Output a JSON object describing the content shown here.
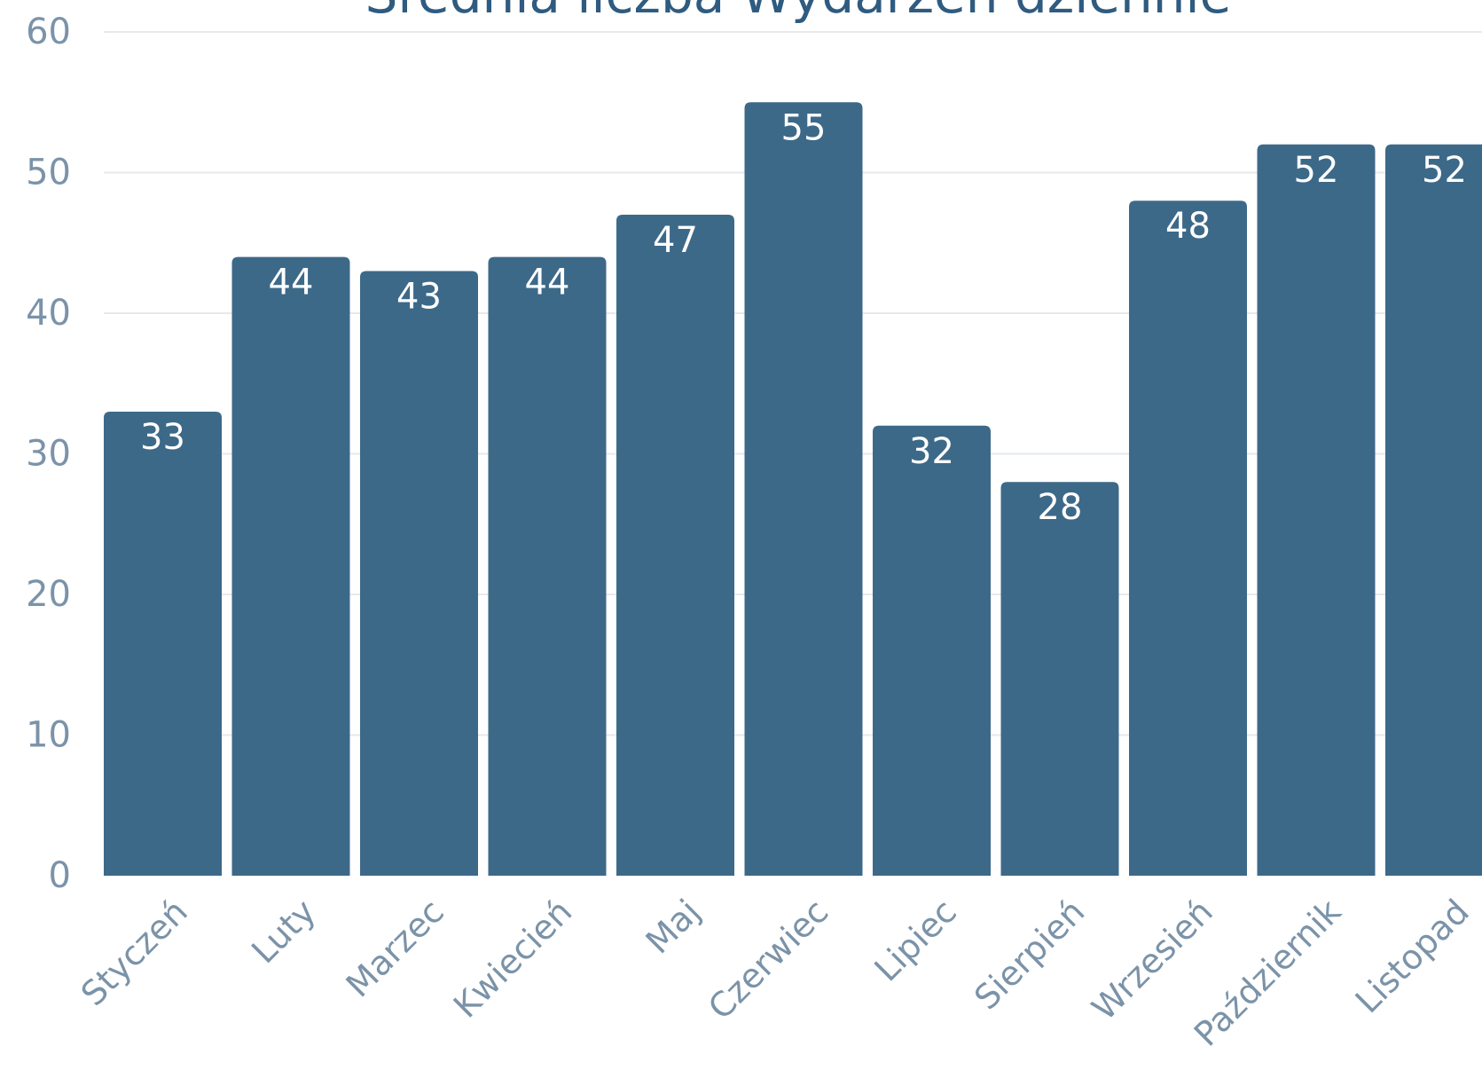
{
  "chart_data": {
    "type": "bar",
    "title": "Średnia liczba Wydarzeń dziennie",
    "xlabel": "",
    "ylabel": "",
    "categories": [
      "Styczeń",
      "Luty",
      "Marzec",
      "Kwiecień",
      "Maj",
      "Czerwiec",
      "Lipiec",
      "Sierpień",
      "Wrzesień",
      "Październik",
      "Listopad"
    ],
    "values": [
      33,
      44,
      43,
      44,
      47,
      55,
      32,
      28,
      48,
      52,
      52
    ],
    "ylim": [
      0,
      60
    ],
    "yticks": [
      0,
      10,
      20,
      30,
      40,
      50,
      60
    ],
    "grid": true,
    "legend": "none",
    "bar_color": "#3d6989",
    "label_color": "#ffffff",
    "tick_color": "#7b93a8",
    "title_color": "#2f5b80"
  }
}
